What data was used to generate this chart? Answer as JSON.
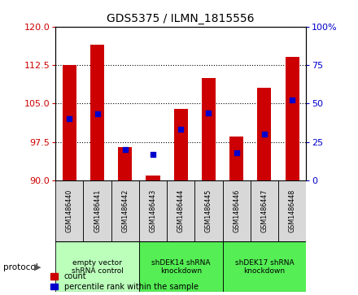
{
  "title": "GDS5375 / ILMN_1815556",
  "samples": [
    "GSM1486440",
    "GSM1486441",
    "GSM1486442",
    "GSM1486443",
    "GSM1486444",
    "GSM1486445",
    "GSM1486446",
    "GSM1486447",
    "GSM1486448"
  ],
  "count_values": [
    112.5,
    116.5,
    96.5,
    91.0,
    104.0,
    110.0,
    98.5,
    108.0,
    114.0
  ],
  "percentile_values": [
    40,
    43,
    20,
    17,
    33,
    44,
    18,
    30,
    52
  ],
  "ylim_left": [
    90,
    120
  ],
  "ylim_right": [
    0,
    100
  ],
  "yticks_left": [
    90,
    97.5,
    105,
    112.5,
    120
  ],
  "yticks_right": [
    0,
    25,
    50,
    75,
    100
  ],
  "groups": [
    {
      "label": "empty vector\nshRNA control",
      "start": 0,
      "end": 2,
      "color": "#bbffbb"
    },
    {
      "label": "shDEK14 shRNA\nknockdown",
      "start": 3,
      "end": 5,
      "color": "#55ee55"
    },
    {
      "label": "shDEK17 shRNA\nknockdown",
      "start": 6,
      "end": 8,
      "color": "#55ee55"
    }
  ],
  "bar_color": "#cc0000",
  "dot_color": "#0000cc",
  "bar_width": 0.5,
  "dot_size": 20,
  "legend_count_label": "count",
  "legend_pct_label": "percentile rank within the sample",
  "protocol_label": "protocol",
  "background_color": "#ffffff",
  "plot_bg_color": "#ffffff",
  "tick_color_left": "#cc0000",
  "tick_color_right": "#0000cc",
  "sample_box_color": "#d8d8d8",
  "title_fontsize": 10
}
